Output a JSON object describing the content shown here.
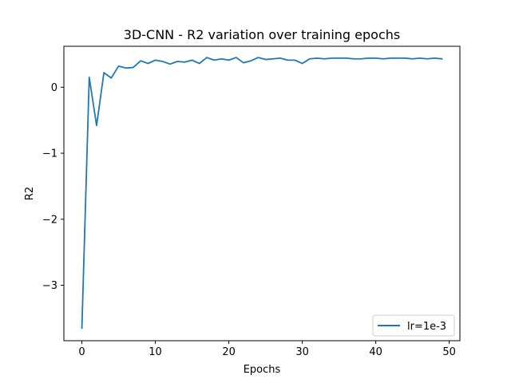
{
  "chart_data": {
    "type": "line",
    "title": "3D-CNN - R2 variation over training epochs",
    "xlabel": "Epochs",
    "ylabel": "R2",
    "xlim": [
      -2.45,
      51.45
    ],
    "ylim": [
      -3.84,
      0.62
    ],
    "xticks": [
      0,
      10,
      20,
      30,
      40,
      50
    ],
    "yticks": [
      -3,
      -2,
      -1,
      0
    ],
    "ytick_labels": [
      "−3",
      "−2",
      "−1",
      "0"
    ],
    "grid": false,
    "legend_position": "lower-right",
    "series": [
      {
        "name": "lr=1e-3",
        "color": "#1f77b4",
        "x": [
          0,
          1,
          2,
          3,
          4,
          5,
          6,
          7,
          8,
          9,
          10,
          11,
          12,
          13,
          14,
          15,
          16,
          17,
          18,
          19,
          20,
          21,
          22,
          23,
          24,
          25,
          26,
          27,
          28,
          29,
          30,
          31,
          32,
          33,
          34,
          35,
          36,
          37,
          38,
          39,
          40,
          41,
          42,
          43,
          44,
          45,
          46,
          47,
          48,
          49
        ],
        "values": [
          -3.65,
          0.15,
          -0.58,
          0.22,
          0.14,
          0.32,
          0.29,
          0.3,
          0.4,
          0.36,
          0.41,
          0.39,
          0.35,
          0.39,
          0.38,
          0.41,
          0.36,
          0.45,
          0.41,
          0.43,
          0.41,
          0.45,
          0.37,
          0.4,
          0.45,
          0.42,
          0.43,
          0.44,
          0.41,
          0.41,
          0.36,
          0.43,
          0.44,
          0.43,
          0.44,
          0.44,
          0.44,
          0.43,
          0.43,
          0.44,
          0.44,
          0.43,
          0.44,
          0.44,
          0.44,
          0.43,
          0.44,
          0.43,
          0.44,
          0.43
        ]
      }
    ]
  }
}
